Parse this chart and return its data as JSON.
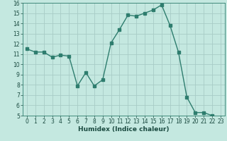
{
  "x": [
    0,
    1,
    2,
    3,
    4,
    5,
    6,
    7,
    8,
    9,
    10,
    11,
    12,
    13,
    14,
    15,
    16,
    17,
    18,
    19,
    20,
    21,
    22,
    23
  ],
  "y": [
    11.5,
    11.2,
    11.2,
    10.7,
    10.9,
    10.8,
    7.9,
    9.2,
    7.9,
    8.5,
    12.1,
    13.4,
    14.8,
    14.7,
    15.0,
    15.3,
    15.8,
    13.8,
    11.2,
    6.8,
    5.3,
    5.3,
    5.0,
    4.8
  ],
  "line_color": "#2e7d6e",
  "marker_color": "#2e7d6e",
  "bg_color": "#c4e8e0",
  "grid_color": "#a8ccc6",
  "xlabel": "Humidex (Indice chaleur)",
  "xlim": [
    -0.5,
    23.5
  ],
  "ylim": [
    5,
    16
  ],
  "yticks": [
    5,
    6,
    7,
    8,
    9,
    10,
    11,
    12,
    13,
    14,
    15,
    16
  ],
  "xticks": [
    0,
    1,
    2,
    3,
    4,
    5,
    6,
    7,
    8,
    9,
    10,
    11,
    12,
    13,
    14,
    15,
    16,
    17,
    18,
    19,
    20,
    21,
    22,
    23
  ],
  "tick_label_fontsize": 5.5,
  "xlabel_fontsize": 6.5,
  "marker_size": 2.5,
  "line_width": 1.0
}
